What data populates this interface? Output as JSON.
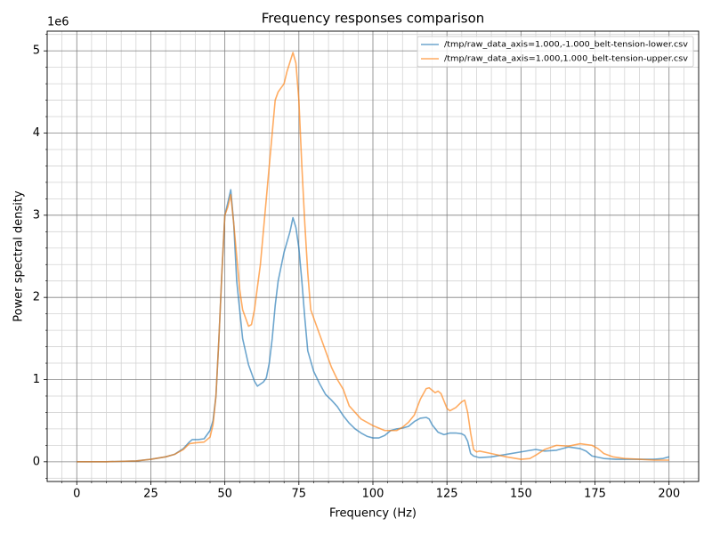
{
  "chart_data": {
    "type": "line",
    "title": "Frequency responses comparison",
    "xlabel": "Frequency (Hz)",
    "ylabel": "Power spectral density",
    "y_offset_label": "1e6",
    "xlim": [
      -10,
      210
    ],
    "ylim": [
      -0.24,
      5.24
    ],
    "xticks": [
      0,
      25,
      50,
      75,
      100,
      125,
      150,
      175,
      200
    ],
    "yticks": [
      0,
      1,
      2,
      3,
      4,
      5
    ],
    "xminorticks": [
      -5,
      5,
      10,
      15,
      20,
      30,
      35,
      40,
      45,
      55,
      60,
      65,
      70,
      80,
      85,
      90,
      95,
      105,
      110,
      115,
      120,
      130,
      135,
      140,
      145,
      155,
      160,
      165,
      170,
      180,
      185,
      190,
      195,
      205
    ],
    "yminorticks": [
      -0.2,
      0.2,
      0.4,
      0.6,
      0.8,
      1.2,
      1.4,
      1.6,
      1.8,
      2.2,
      2.4,
      2.6,
      2.8,
      3.2,
      3.4,
      3.6,
      3.8,
      4.2,
      4.4,
      4.6,
      4.8,
      5.2
    ],
    "grid": true,
    "minor_grid": true,
    "legend": "upper right",
    "alpha": 0.65,
    "series": [
      {
        "name": "/tmp/raw_data_axis=1.000,-1.000_belt-tension-lower.csv",
        "color": "#1f77b4",
        "x": [
          0,
          5,
          10,
          15,
          20,
          25,
          30,
          33,
          36,
          38,
          39,
          41,
          43,
          45,
          46,
          47,
          48,
          49,
          50,
          51,
          52,
          53,
          54,
          56,
          58,
          60,
          61,
          63,
          64,
          65,
          66,
          67,
          68,
          70,
          72,
          73,
          74,
          75,
          76,
          77,
          78,
          80,
          82,
          84,
          86,
          88,
          90,
          92,
          94,
          96,
          98,
          100,
          102,
          104,
          106,
          108,
          110,
          112,
          114,
          116,
          118,
          119,
          120,
          122,
          124,
          126,
          128,
          130,
          131,
          132,
          133,
          134,
          136,
          140,
          145,
          150,
          155,
          158,
          162,
          166,
          170,
          172,
          174,
          178,
          182,
          190,
          195,
          198,
          200
        ],
        "values": [
          0,
          0,
          0,
          0.005,
          0.01,
          0.03,
          0.06,
          0.09,
          0.16,
          0.24,
          0.27,
          0.27,
          0.28,
          0.38,
          0.5,
          0.8,
          1.5,
          2.3,
          3.0,
          3.15,
          3.31,
          2.9,
          2.2,
          1.5,
          1.18,
          0.98,
          0.92,
          0.97,
          1.02,
          1.2,
          1.5,
          1.9,
          2.2,
          2.55,
          2.8,
          2.97,
          2.85,
          2.6,
          2.2,
          1.75,
          1.35,
          1.1,
          0.95,
          0.82,
          0.75,
          0.67,
          0.56,
          0.47,
          0.4,
          0.35,
          0.31,
          0.29,
          0.29,
          0.32,
          0.38,
          0.4,
          0.41,
          0.43,
          0.49,
          0.53,
          0.54,
          0.52,
          0.45,
          0.36,
          0.33,
          0.35,
          0.35,
          0.34,
          0.32,
          0.25,
          0.1,
          0.07,
          0.05,
          0.06,
          0.09,
          0.12,
          0.15,
          0.13,
          0.14,
          0.18,
          0.16,
          0.13,
          0.07,
          0.04,
          0.03,
          0.03,
          0.03,
          0.04,
          0.06
        ]
      },
      {
        "name": "/tmp/raw_data_axis=1.000,1.000_belt-tension-upper.csv",
        "color": "#ff7f0e",
        "x": [
          0,
          5,
          10,
          15,
          20,
          25,
          30,
          33,
          36,
          38,
          40,
          43,
          45,
          46,
          47,
          48,
          49,
          50,
          51,
          52,
          53,
          54,
          55,
          56,
          58,
          59,
          60,
          62,
          64,
          66,
          67,
          68,
          70,
          71,
          73,
          74,
          75,
          76,
          77,
          78,
          79,
          80,
          82,
          84,
          86,
          88,
          90,
          92,
          94,
          96,
          100,
          104,
          108,
          110,
          112,
          114,
          116,
          118,
          119,
          120,
          121,
          122,
          123,
          124,
          125,
          126,
          128,
          130,
          131,
          132,
          133,
          134,
          135,
          136,
          140,
          145,
          150,
          153,
          155,
          158,
          162,
          166,
          170,
          174,
          176,
          178,
          181,
          185,
          190,
          195,
          200
        ],
        "values": [
          0,
          0,
          0,
          0.005,
          0.01,
          0.03,
          0.06,
          0.09,
          0.15,
          0.22,
          0.23,
          0.24,
          0.3,
          0.45,
          0.8,
          1.5,
          2.3,
          3.0,
          3.1,
          3.25,
          2.9,
          2.5,
          2.1,
          1.85,
          1.65,
          1.67,
          1.85,
          2.4,
          3.2,
          4.0,
          4.4,
          4.5,
          4.6,
          4.75,
          4.98,
          4.85,
          4.4,
          3.6,
          2.9,
          2.3,
          1.85,
          1.75,
          1.55,
          1.35,
          1.15,
          1.0,
          0.88,
          0.68,
          0.6,
          0.52,
          0.44,
          0.38,
          0.38,
          0.42,
          0.48,
          0.57,
          0.76,
          0.89,
          0.9,
          0.87,
          0.84,
          0.86,
          0.83,
          0.74,
          0.65,
          0.62,
          0.66,
          0.73,
          0.75,
          0.6,
          0.35,
          0.15,
          0.12,
          0.13,
          0.1,
          0.06,
          0.03,
          0.04,
          0.08,
          0.15,
          0.2,
          0.19,
          0.22,
          0.2,
          0.16,
          0.1,
          0.06,
          0.04,
          0.03,
          0.02,
          0.02
        ]
      }
    ]
  }
}
